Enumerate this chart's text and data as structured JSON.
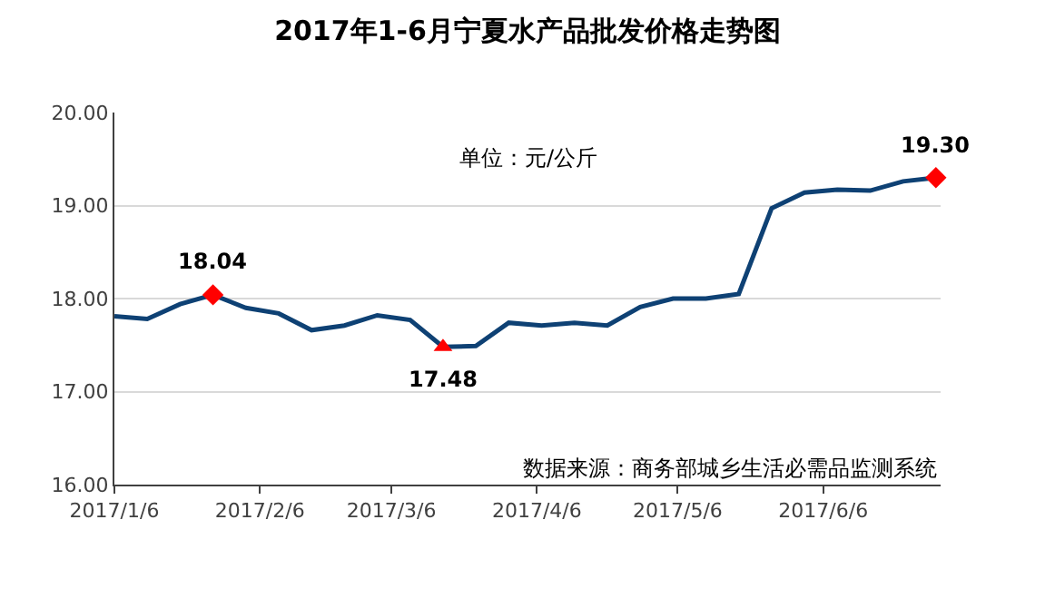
{
  "chart_data": {
    "type": "line",
    "title": "2017年1-6月宁夏水产品批发价格走势图",
    "x": [
      "2017-01-06",
      "2017-01-13",
      "2017-01-20",
      "2017-01-27",
      "2017-02-03",
      "2017-02-10",
      "2017-02-17",
      "2017-02-24",
      "2017-03-03",
      "2017-03-10",
      "2017-03-17",
      "2017-03-24",
      "2017-03-31",
      "2017-04-07",
      "2017-04-14",
      "2017-04-21",
      "2017-04-28",
      "2017-05-05",
      "2017-05-12",
      "2017-05-19",
      "2017-05-26",
      "2017-06-02",
      "2017-06-09",
      "2017-06-16",
      "2017-06-23",
      "2017-06-30"
    ],
    "series": [
      {
        "color": "#0e4174",
        "marker": "none",
        "values": [
          17.81,
          17.78,
          17.94,
          18.04,
          17.9,
          17.84,
          17.66,
          17.71,
          17.82,
          17.77,
          17.48,
          17.49,
          17.74,
          17.71,
          17.74,
          17.71,
          17.91,
          18.0,
          18.0,
          18.05,
          18.97,
          19.14,
          19.17,
          19.16,
          19.26,
          19.3
        ]
      },
      {
        "type": "scatter",
        "color": "#ff0000",
        "marker": "diamond",
        "x": [
          "2017-01-27",
          "2017-06-30"
        ],
        "values": [
          18.04,
          19.3
        ]
      },
      {
        "type": "scatter",
        "color": "#ff0000",
        "marker": "triangle",
        "x": [
          "2017-03-17"
        ],
        "values": [
          17.48
        ]
      }
    ],
    "xlim": [
      "2017-01-06",
      "2017-07-01"
    ],
    "xticks": [
      {
        "value": "2017-01-06",
        "label": "2017/1/6"
      },
      {
        "value": "2017-02-06",
        "label": "2017/2/6"
      },
      {
        "value": "2017-03-06",
        "label": "2017/3/6"
      },
      {
        "value": "2017-04-06",
        "label": "2017/4/6"
      },
      {
        "value": "2017-05-06",
        "label": "2017/5/6"
      },
      {
        "value": "2017-06-06",
        "label": "2017/6/6"
      }
    ],
    "ylim": [
      16,
      20
    ],
    "yticks": [
      {
        "value": 16,
        "label": "16.00"
      },
      {
        "value": 17,
        "label": "17.00"
      },
      {
        "value": 18,
        "label": "18.00"
      },
      {
        "value": 19,
        "label": "19.00"
      },
      {
        "value": 20,
        "label": "20.00"
      }
    ],
    "grid": "y",
    "legend": false,
    "annotations": [
      {
        "text": "18.04",
        "x": "2017-01-27",
        "y": 18.04
      },
      {
        "text": "17.48",
        "x": "2017-03-17",
        "y": 17.48
      },
      {
        "text": "19.30",
        "x": "2017-06-30",
        "y": 19.3
      },
      "单位：元/公斤",
      "数据来源：商务部城乡生活必需品监测系统"
    ]
  }
}
